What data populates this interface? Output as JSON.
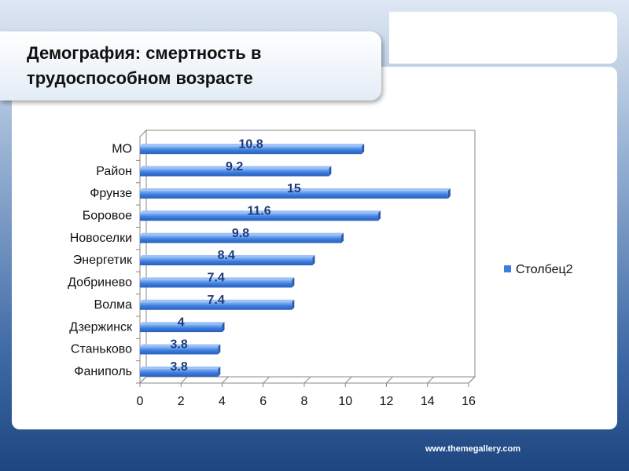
{
  "title": "Демография: смертность в трудоспособном возрасте",
  "footer": "www.themegallery.com",
  "chart_data": {
    "type": "hbar",
    "categories": [
      "МО",
      "Район",
      "Фрунзе",
      "Боровое",
      "Новоселки",
      "Энергетик",
      "Добринево",
      "Волма",
      "Дзержинск",
      "Станьково",
      "Фаниполь"
    ],
    "series": [
      {
        "name": "Столбец2",
        "color": "#3b7de0",
        "values": [
          10.8,
          9.2,
          15,
          11.6,
          9.8,
          8.4,
          7.4,
          7.4,
          4,
          3.8,
          3.8
        ]
      }
    ],
    "xlim": [
      0,
      16
    ],
    "xticks": [
      0,
      2,
      4,
      6,
      8,
      10,
      12,
      14,
      16
    ],
    "legend": "right"
  }
}
